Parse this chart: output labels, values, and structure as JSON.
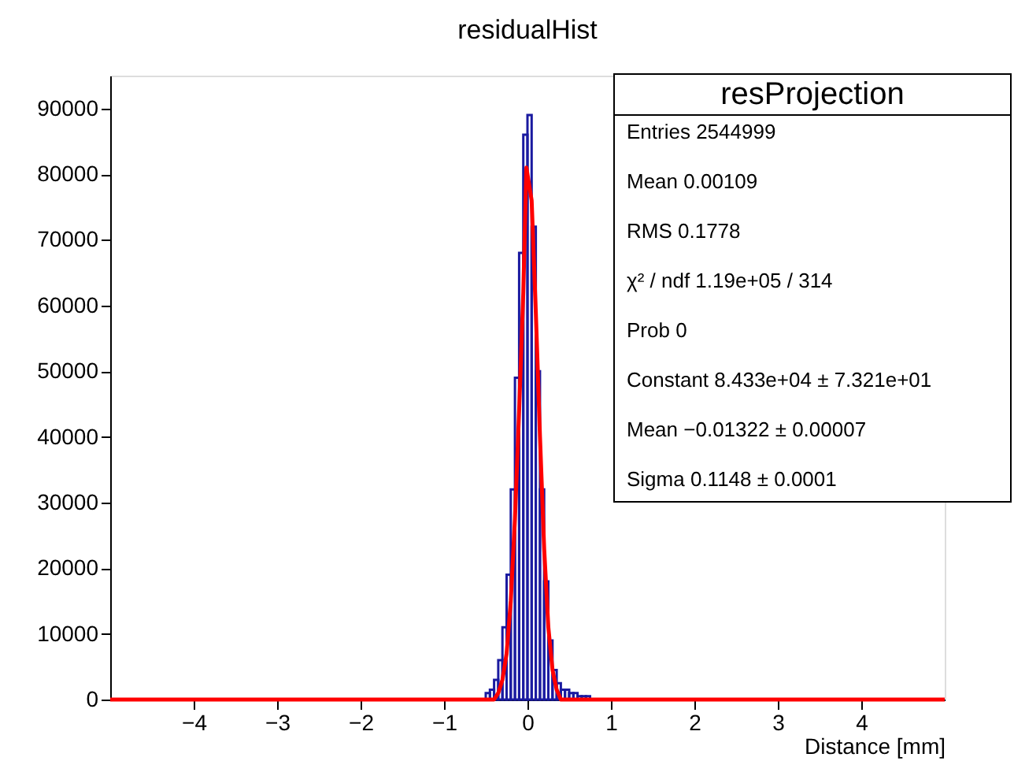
{
  "chart_data": {
    "type": "histogram",
    "title": "residualHist",
    "xlabel": "Distance [mm]",
    "bins": [
      -5,
      -0.6,
      -0.55,
      -0.5,
      -0.45,
      -0.4,
      -0.35,
      -0.3,
      -0.25,
      -0.2,
      -0.15,
      -0.1,
      -0.05,
      0,
      0.05,
      0.1,
      0.15,
      0.2,
      0.25,
      0.3,
      0.35,
      0.4,
      0.45,
      0.5,
      0.55,
      0.6,
      0.65,
      0.7,
      0.75,
      0.8,
      0.85,
      0.9,
      0.95,
      1.0,
      5
    ],
    "values": [
      0,
      0,
      0,
      1000,
      1500,
      3000,
      6000,
      11000,
      19000,
      32000,
      49000,
      68000,
      86000,
      89000,
      72000,
      50000,
      32000,
      18000,
      9000,
      4500,
      2500,
      1500,
      1500,
      1000,
      1000,
      500,
      500,
      500,
      0,
      0,
      0,
      0,
      0,
      0
    ],
    "color": "#1a1aa0",
    "series": [
      {
        "type": "line",
        "color": "#ff0000",
        "x": [
          -5,
          -0.5,
          -0.45,
          -0.4,
          -0.35,
          -0.3,
          -0.25,
          -0.2,
          -0.15,
          -0.1,
          -0.05,
          -0.013,
          0.05,
          0.1,
          0.15,
          0.2,
          0.25,
          0.3,
          0.35,
          0.4,
          0.45,
          5
        ],
        "values": [
          0,
          0,
          0,
          0,
          1000,
          3000,
          7000,
          15000,
          27500,
          44000,
          62000,
          81000,
          76000,
          59000,
          40000,
          23000,
          11000,
          4500,
          1500,
          0,
          0,
          0
        ]
      }
    ],
    "xlim": [
      -5,
      5
    ],
    "ylim": [
      0,
      95000
    ],
    "xticks": [
      -4,
      -3,
      -2,
      -1,
      0,
      1,
      2,
      3,
      4
    ],
    "yticks": [
      0,
      10000,
      20000,
      30000,
      40000,
      50000,
      60000,
      70000,
      80000,
      90000
    ],
    "grid": false,
    "annotations": [
      "resProjection",
      "Entries 2544999",
      "Mean 0.00109",
      "RMS 0.1778",
      "χ² / ndf 1.19e+05 / 314",
      "Prob 0",
      "Constant 8.433e+04 ± 7.321e+01",
      "Mean −0.01322 ± 0.00007",
      "Sigma 0.1148 ± 0.0001"
    ]
  }
}
